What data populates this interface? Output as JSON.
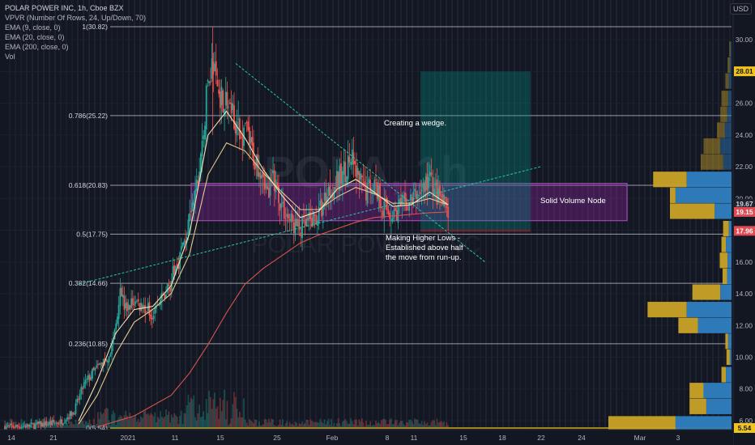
{
  "legend": {
    "title": "POLAR POWER INC, 1h, Cboe BZX",
    "vpvr": "VPVR (Number Of Rows, 24, Up/Down, 70)",
    "ema9": "EMA (9, close, 0)",
    "ema20": "EMA (20, close, 0)",
    "ema200": "EMA (200, close, 0)",
    "vol": "Vol"
  },
  "currency": "USD",
  "watermark": {
    "symbol": "POLA, 1h",
    "name": "POLAR POWER INC"
  },
  "chart_data": {
    "type": "candlestick",
    "instrument": "POLAR POWER INC",
    "interval": "1h",
    "exchange": "Cboe BZX",
    "ylim": [
      5.3,
      31.9
    ],
    "y_ticks": [
      6,
      8,
      10,
      12,
      14,
      16,
      18,
      20,
      22,
      24,
      26,
      28,
      30
    ],
    "y_tick_labels": [
      "6.00",
      "8.00",
      "10.00",
      "12.00",
      "14.00",
      "16.00",
      "18.00",
      "20.00",
      "22.00",
      "24.00",
      "26.00",
      "28.00",
      "30.00"
    ],
    "x_ticks": [
      {
        "label": "14"
      },
      {
        "label": "21"
      },
      {
        "label": "2021"
      },
      {
        "label": "11"
      },
      {
        "label": "15"
      },
      {
        "label": "25"
      },
      {
        "label": "Feb"
      },
      {
        "label": "8"
      },
      {
        "label": "11"
      },
      {
        "label": "15"
      },
      {
        "label": "18"
      },
      {
        "label": "22"
      },
      {
        "label": "24"
      },
      {
        "label": "Mar"
      },
      {
        "label": "3"
      }
    ],
    "fib_levels": [
      {
        "label": "1(30.82)",
        "value": 30.82
      },
      {
        "label": "0.786(25.22)",
        "value": 25.22
      },
      {
        "label": "0.618(20.83)",
        "value": 20.83
      },
      {
        "label": "0.5(17.75)",
        "value": 17.75
      },
      {
        "label": "0.382(14.66)",
        "value": 14.66
      },
      {
        "label": "0.236(10.85)",
        "value": 10.85
      },
      {
        "label": "0(5.54)",
        "value": 5.54
      }
    ],
    "price_labels": [
      {
        "text": "28.01",
        "value": 28.01,
        "color": "#f0c419",
        "text_color": "#131722"
      },
      {
        "text": "19.67",
        "value": 19.67,
        "color": "#1e222d",
        "text_color": "#d1d4dc"
      },
      {
        "text": "19.15",
        "value": 19.15,
        "color": "#e04a54",
        "text_color": "#ffffff"
      },
      {
        "text": "17.96",
        "value": 17.96,
        "color": "#e04a54",
        "text_color": "#ffffff"
      },
      {
        "text": "5.54",
        "value": 5.54,
        "color": "#f0c419",
        "text_color": "#131722"
      }
    ],
    "annotations": {
      "wedge": "Creating a wedge.",
      "volume_node": "Solid Volume Node",
      "higher_lows": [
        "Making Higher Lows -",
        "Established above half",
        "the move from run-up."
      ]
    },
    "volume_node_zone": {
      "low": 18.6,
      "high": 20.95
    },
    "long_position": {
      "entry": 18.05,
      "stop": 17.9,
      "target": 28.0
    },
    "trendlines": [
      {
        "name": "upper-wedge",
        "from": [
          25,
          28.5
        ],
        "to": [
          52,
          16.0
        ]
      },
      {
        "name": "lower-wedge",
        "from": [
          8,
          14.6
        ],
        "to": [
          58,
          22.0
        ]
      }
    ],
    "price_path": [
      [
        0,
        5.6
      ],
      [
        3,
        5.7
      ],
      [
        6,
        5.9
      ],
      [
        7.5,
        6.6
      ],
      [
        8.5,
        8.2
      ],
      [
        9.5,
        9.0
      ],
      [
        10.5,
        9.6
      ],
      [
        11.5,
        10.4
      ],
      [
        12,
        12.0
      ],
      [
        12.5,
        14.6
      ],
      [
        13,
        13.0
      ],
      [
        14,
        13.5
      ],
      [
        15,
        13.2
      ],
      [
        16,
        12.8
      ],
      [
        17,
        13.6
      ],
      [
        18,
        14.8
      ],
      [
        19,
        16.5
      ],
      [
        20,
        18.4
      ],
      [
        21,
        21.5
      ],
      [
        21.5,
        24.0
      ],
      [
        22,
        27.5
      ],
      [
        22.5,
        28.5
      ],
      [
        23,
        27.0
      ],
      [
        24,
        26.0
      ],
      [
        25,
        25.0
      ],
      [
        25.5,
        23.5
      ],
      [
        26,
        24.5
      ],
      [
        27,
        22.5
      ],
      [
        28,
        21.8
      ],
      [
        28.5,
        20.0
      ],
      [
        29,
        21.5
      ],
      [
        30,
        19.5
      ],
      [
        31,
        18.5
      ],
      [
        32,
        18.0
      ],
      [
        33,
        18.5
      ],
      [
        34,
        19.0
      ],
      [
        35,
        20.5
      ],
      [
        36,
        21.0
      ],
      [
        37,
        22.0
      ],
      [
        37.5,
        22.5
      ],
      [
        38,
        21.5
      ],
      [
        39,
        20.5
      ],
      [
        40,
        21.0
      ],
      [
        41,
        19.5
      ],
      [
        42,
        19.0
      ],
      [
        43,
        19.5
      ],
      [
        44,
        19.8
      ],
      [
        45,
        20.5
      ],
      [
        46,
        21.2
      ],
      [
        47,
        20.0
      ],
      [
        48,
        19.2
      ]
    ],
    "ema9_path": [
      [
        8,
        6.0
      ],
      [
        10,
        8.5
      ],
      [
        12,
        11.5
      ],
      [
        14,
        13.0
      ],
      [
        16,
        13.2
      ],
      [
        18,
        14.5
      ],
      [
        20,
        17.8
      ],
      [
        22,
        24.0
      ],
      [
        24,
        25.5
      ],
      [
        26,
        23.8
      ],
      [
        28,
        21.8
      ],
      [
        30,
        20.2
      ],
      [
        32,
        18.8
      ],
      [
        34,
        19.2
      ],
      [
        36,
        20.6
      ],
      [
        38,
        21.2
      ],
      [
        40,
        20.4
      ],
      [
        42,
        19.5
      ],
      [
        44,
        19.6
      ],
      [
        46,
        20.4
      ],
      [
        48,
        19.6
      ]
    ],
    "ema20_path": [
      [
        8,
        5.8
      ],
      [
        10,
        7.6
      ],
      [
        12,
        10.2
      ],
      [
        14,
        12.2
      ],
      [
        16,
        13.0
      ],
      [
        18,
        14.0
      ],
      [
        20,
        16.5
      ],
      [
        22,
        21.5
      ],
      [
        24,
        23.5
      ],
      [
        26,
        23.0
      ],
      [
        28,
        21.6
      ],
      [
        30,
        20.4
      ],
      [
        32,
        19.3
      ],
      [
        34,
        19.3
      ],
      [
        36,
        20.1
      ],
      [
        38,
        20.7
      ],
      [
        40,
        20.3
      ],
      [
        42,
        19.7
      ],
      [
        44,
        19.7
      ],
      [
        46,
        20.0
      ],
      [
        48,
        19.6
      ]
    ],
    "ema200_path": [
      [
        10,
        5.6
      ],
      [
        14,
        6.3
      ],
      [
        18,
        7.6
      ],
      [
        20,
        9.0
      ],
      [
        22,
        10.8
      ],
      [
        24,
        12.8
      ],
      [
        26,
        14.6
      ],
      [
        28,
        15.6
      ],
      [
        30,
        16.4
      ],
      [
        32,
        17.2
      ],
      [
        34,
        17.7
      ],
      [
        36,
        18.1
      ],
      [
        38,
        18.5
      ],
      [
        40,
        18.8
      ],
      [
        42,
        18.9
      ],
      [
        44,
        19.0
      ],
      [
        46,
        19.1
      ],
      [
        48,
        19.15
      ]
    ],
    "volume_profile": [
      {
        "price": 5.8,
        "up": 120,
        "down": 100
      },
      {
        "price": 6.9,
        "up": 30,
        "down": 45
      },
      {
        "price": 7.9,
        "up": 25,
        "down": 50
      },
      {
        "price": 8.9,
        "up": 8,
        "down": 10
      },
      {
        "price": 10.0,
        "up": 6,
        "down": 3
      },
      {
        "price": 11.0,
        "up": 5,
        "down": 6
      },
      {
        "price": 12.0,
        "up": 35,
        "down": 60
      },
      {
        "price": 13.0,
        "up": 70,
        "down": 80
      },
      {
        "price": 14.1,
        "up": 50,
        "down": 20
      },
      {
        "price": 15.1,
        "up": 8,
        "down": 8
      },
      {
        "price": 16.1,
        "up": 14,
        "down": 7
      },
      {
        "price": 17.1,
        "up": 8,
        "down": 10
      },
      {
        "price": 18.1,
        "up": 10,
        "down": 5
      },
      {
        "price": 19.2,
        "up": 80,
        "down": 30
      },
      {
        "price": 20.2,
        "up": 10,
        "down": 100
      },
      {
        "price": 21.2,
        "up": 60,
        "down": 80
      },
      {
        "price": 22.3,
        "up": 40,
        "down": 15
      },
      {
        "price": 23.3,
        "up": 30,
        "down": 20
      },
      {
        "price": 24.3,
        "up": 14,
        "down": 12
      },
      {
        "price": 25.3,
        "up": 12,
        "down": 8
      },
      {
        "price": 26.3,
        "up": 12,
        "down": 6
      },
      {
        "price": 27.4,
        "up": 6,
        "down": 5
      },
      {
        "price": 28.4,
        "up": 4,
        "down": 3
      },
      {
        "price": 29.4,
        "up": 2,
        "down": 2
      }
    ]
  }
}
